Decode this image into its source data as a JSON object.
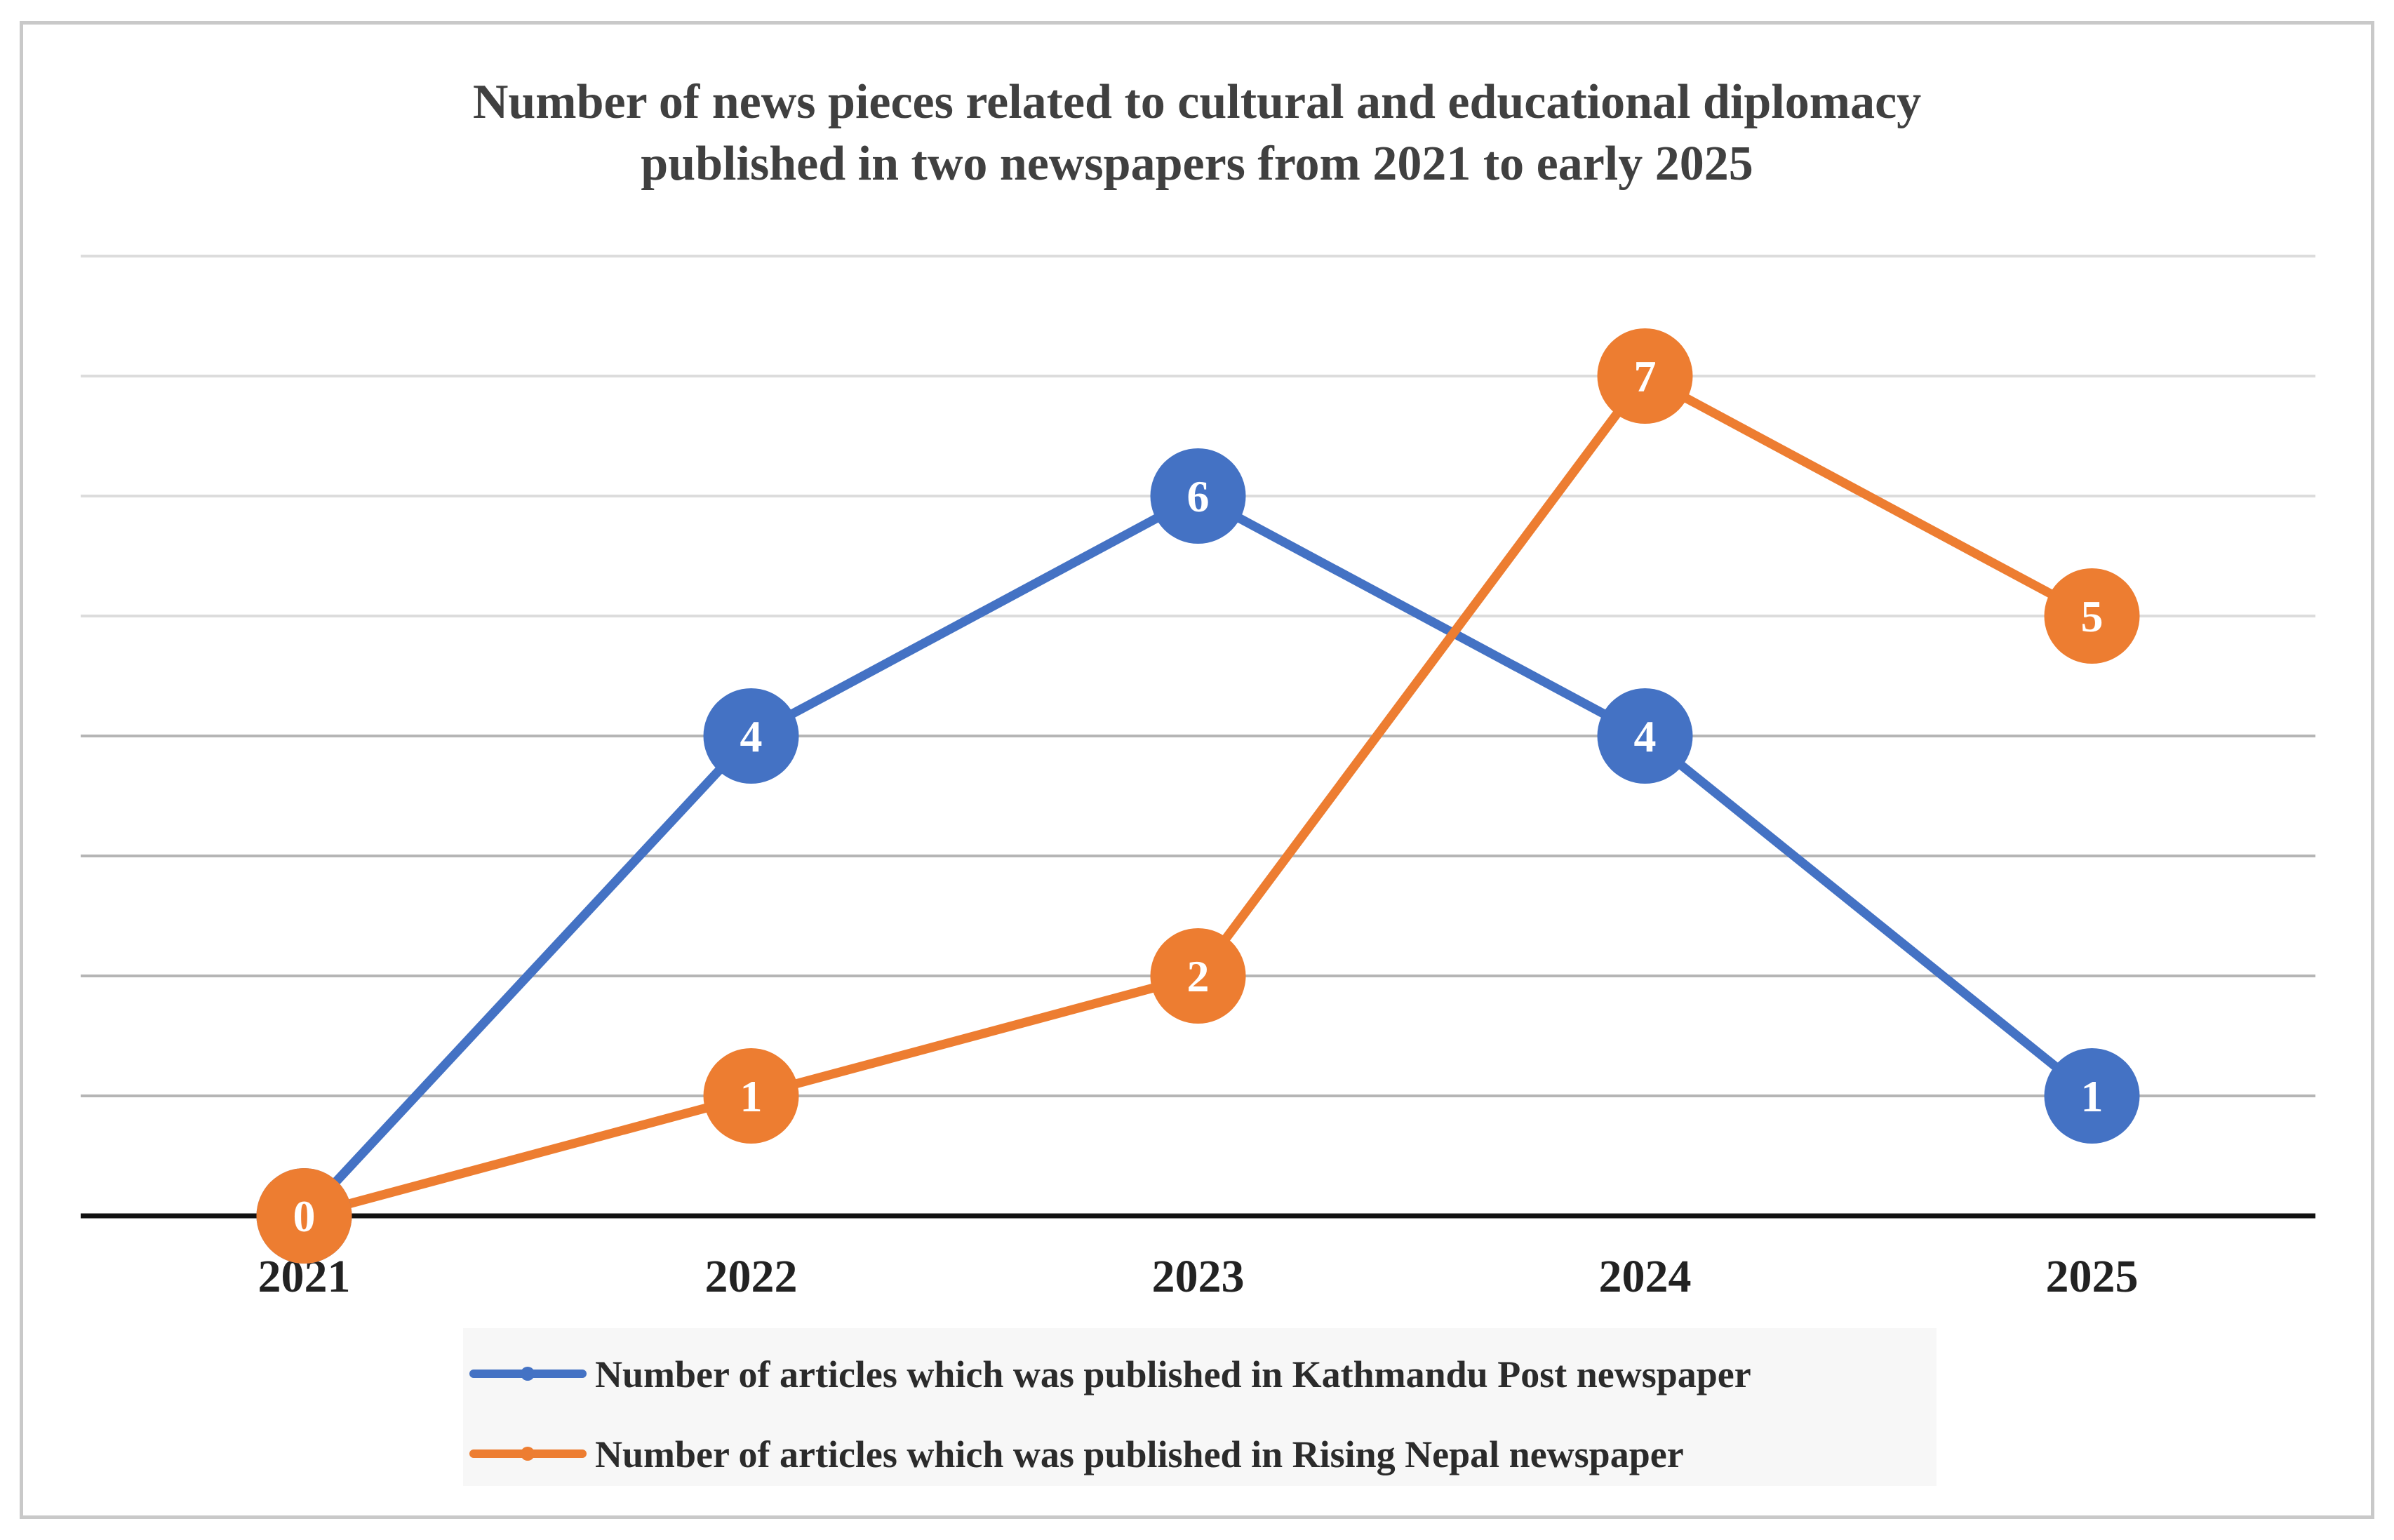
{
  "chart_data": {
    "type": "line",
    "title_lines": [
      "Number of news pieces related to cultural and educational diplomacy",
      "published in two newspapers from 2021 to early 2025"
    ],
    "categories": [
      "2021",
      "2022",
      "2023",
      "2024",
      "2025"
    ],
    "ylim": [
      0,
      8
    ],
    "y_gridlines": [
      1,
      2,
      3,
      4,
      5,
      6,
      7,
      8
    ],
    "xlabel": "",
    "ylabel": "",
    "legend_position": "bottom",
    "series": [
      {
        "name": "Number of articles which was published in Kathmandu Post newspaper",
        "color": "#4472c4",
        "values": [
          0,
          4,
          6,
          4,
          1
        ]
      },
      {
        "name": "Number of articles which was published in Rising Nepal newspaper",
        "color": "#ed7d31",
        "values": [
          0,
          1,
          2,
          7,
          5
        ]
      }
    ]
  }
}
